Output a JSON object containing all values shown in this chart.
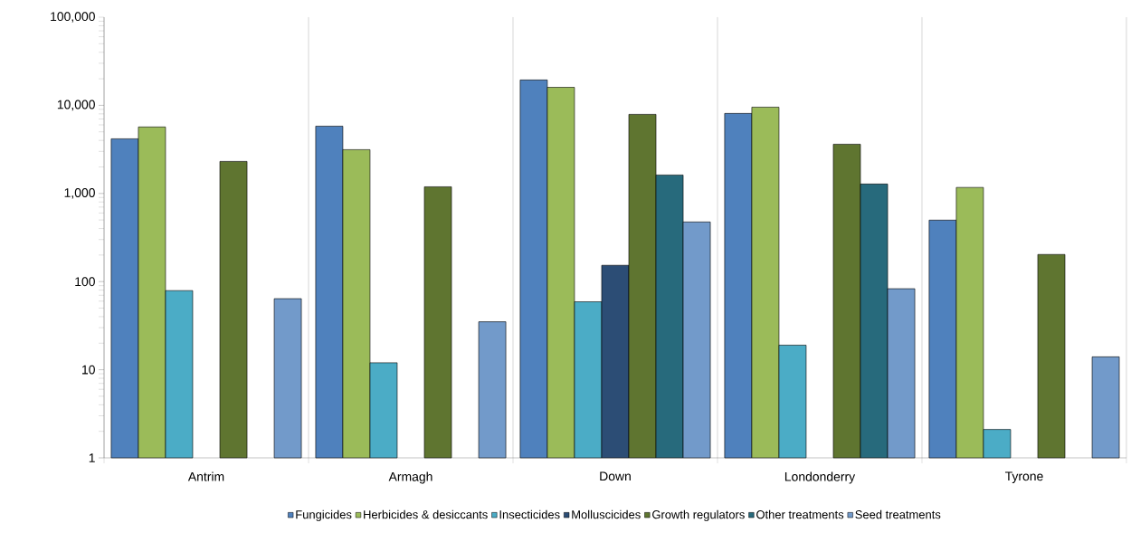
{
  "chart_data": {
    "type": "bar",
    "log": "y",
    "grid": "x",
    "legend": "bottom",
    "categories": [
      "Antrim",
      "Armagh",
      "Down",
      "Londonderry",
      "Tyrone"
    ],
    "ylim": [
      1,
      100000
    ],
    "yticks": [
      1,
      10,
      100,
      {
        "value": 1000,
        "label": "1,000"
      },
      {
        "value": 10000,
        "label": "10,000"
      },
      {
        "value": 100000,
        "label": "100,000"
      }
    ],
    "series": [
      {
        "name": "Fungicides",
        "color": "#4f81bd",
        "values": [
          4170,
          5800,
          19400,
          8090,
          498
        ]
      },
      {
        "name": "Herbicides & desiccants",
        "color": "#9bbb59",
        "values": [
          5680,
          3140,
          16000,
          9530,
          1170
        ]
      },
      {
        "name": "Insecticides",
        "color": "#4bacc6",
        "values": [
          79,
          12,
          59,
          19,
          2.1
        ]
      },
      {
        "name": "Molluscicides",
        "color": "#2c4d75",
        "values": [
          null,
          null,
          153,
          null,
          null
        ]
      },
      {
        "name": "Growth regulators",
        "color": "#5f7530",
        "values": [
          2310,
          1190,
          7900,
          3620,
          203
        ]
      },
      {
        "name": "Other treatments",
        "color": "#276a7c",
        "values": [
          null,
          null,
          1620,
          1280,
          null
        ]
      },
      {
        "name": "Seed treatments",
        "color": "#729aca",
        "values": [
          64,
          35,
          475,
          83,
          14
        ]
      }
    ]
  }
}
